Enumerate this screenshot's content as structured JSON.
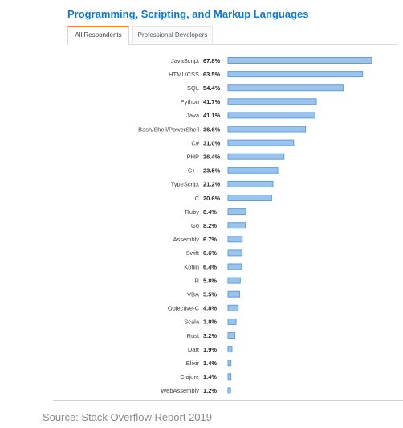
{
  "title": "Programming, Scripting, and Markup Languages",
  "tabs": [
    {
      "label": "All Respondents",
      "active": true
    },
    {
      "label": "Professional Developers",
      "active": false
    }
  ],
  "source": "Source: Stack Overflow Report 2019",
  "colors": {
    "bar_fill": "#9cc3ec",
    "bar_stroke": "#5ba0e4",
    "title": "#0e7ad0",
    "tab_accent": "#f48024"
  },
  "chart_data": {
    "type": "bar",
    "orientation": "horizontal",
    "grid": false,
    "categories": [
      "JavaScript",
      "HTML/CSS",
      "SQL",
      "Python",
      "Java",
      "Bash/Shell/PowerShell",
      "C#",
      "PHP",
      "C++",
      "TypeScript",
      "C",
      "Ruby",
      "Go",
      "Assembly",
      "Swift",
      "Kotlin",
      "R",
      "VBA",
      "Objective-C",
      "Scala",
      "Rust",
      "Dart",
      "Elixir",
      "Clojure",
      "WebAssembly"
    ],
    "values": [
      67.8,
      63.5,
      54.4,
      41.7,
      41.1,
      36.6,
      31.0,
      26.4,
      23.5,
      21.2,
      20.6,
      8.4,
      8.2,
      6.7,
      6.6,
      6.4,
      5.8,
      5.5,
      4.8,
      3.8,
      3.2,
      1.9,
      1.4,
      1.4,
      1.2
    ],
    "value_labels": [
      "67.8%",
      "63.5%",
      "54.4%",
      "41.7%",
      "41.1%",
      "36.6%",
      "31.0%",
      "26.4%",
      "23.5%",
      "21.2%",
      "20.6%",
      "8.4%",
      "8.2%",
      "6.7%",
      "6.6%",
      "6.4%",
      "5.8%",
      "5.5%",
      "4.8%",
      "3.8%",
      "3.2%",
      "1.9%",
      "1.4%",
      "1.4%",
      "1.2%"
    ],
    "unit": "%",
    "xlim": [
      0,
      67.8
    ]
  }
}
